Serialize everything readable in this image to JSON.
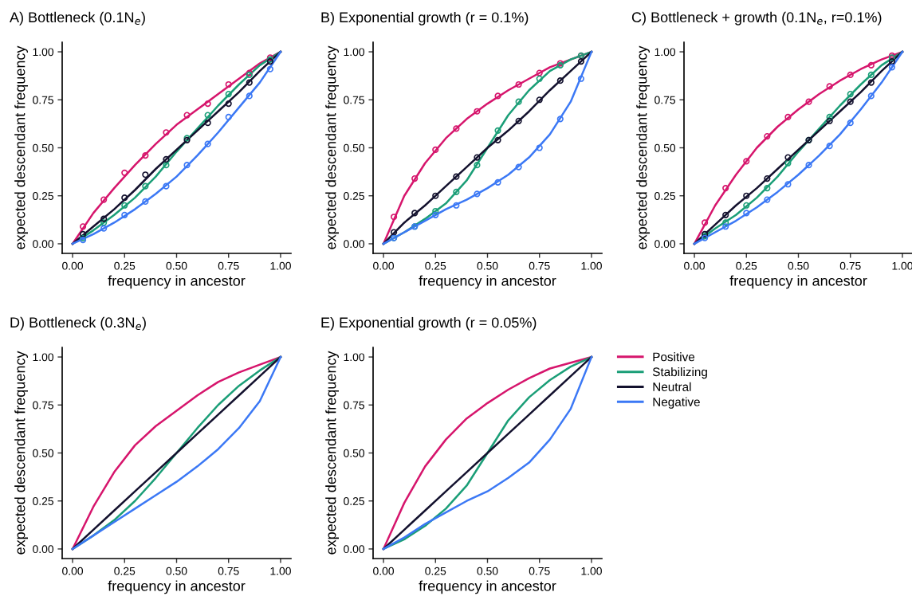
{
  "chart_data": [
    {
      "type": "line",
      "title": "A) Bottleneck (0.1N$_{e}$)",
      "xlabel": "frequency in ancestor",
      "ylabel": "expected descendant frequency",
      "x": [
        0,
        0.1,
        0.2,
        0.3,
        0.4,
        0.5,
        0.6,
        0.7,
        0.8,
        0.9,
        1
      ],
      "xlim": [
        -0.05,
        1.05
      ],
      "ylim": [
        -0.05,
        1.05
      ],
      "xticks": [
        {
          "value": 0,
          "label": "0.00"
        },
        {
          "value": 0.25,
          "label": "0.25"
        },
        {
          "value": 0.5,
          "label": "0.50"
        },
        {
          "value": 0.75,
          "label": "0.75"
        },
        {
          "value": 1,
          "label": "1.00"
        }
      ],
      "yticks": [
        {
          "value": 0,
          "label": "0.00"
        },
        {
          "value": 0.25,
          "label": "0.25"
        },
        {
          "value": 0.5,
          "label": "0.50"
        },
        {
          "value": 0.75,
          "label": "0.75"
        },
        {
          "value": 1,
          "label": "1.00"
        }
      ],
      "grid": false,
      "legend": false,
      "series": [
        {
          "color": "#d6156c",
          "values": [
            0,
            0.16,
            0.29,
            0.41,
            0.52,
            0.62,
            0.7,
            0.78,
            0.86,
            0.94,
            1
          ]
        },
        {
          "color": "#1a9e77",
          "values": [
            0,
            0.07,
            0.15,
            0.24,
            0.35,
            0.48,
            0.6,
            0.72,
            0.83,
            0.93,
            1
          ]
        },
        {
          "color": "#13112e",
          "values": [
            0,
            0.09,
            0.18,
            0.28,
            0.39,
            0.49,
            0.59,
            0.69,
            0.79,
            0.9,
            1
          ]
        },
        {
          "color": "#3b78f5",
          "values": [
            0,
            0.05,
            0.11,
            0.18,
            0.26,
            0.35,
            0.46,
            0.58,
            0.71,
            0.84,
            1
          ]
        },
        {
          "type": "scatter",
          "marker": "circle",
          "color": "#d6156c",
          "x": [
            0.05,
            0.15,
            0.25,
            0.35,
            0.45,
            0.55,
            0.65,
            0.75,
            0.85,
            0.95
          ],
          "values": [
            0.09,
            0.23,
            0.37,
            0.46,
            0.58,
            0.67,
            0.73,
            0.83,
            0.89,
            0.97
          ]
        },
        {
          "type": "scatter",
          "marker": "circle",
          "color": "#1a9e77",
          "x": [
            0.05,
            0.15,
            0.25,
            0.35,
            0.45,
            0.55,
            0.65,
            0.75,
            0.85,
            0.95
          ],
          "values": [
            0.03,
            0.11,
            0.2,
            0.3,
            0.41,
            0.55,
            0.67,
            0.78,
            0.88,
            0.96
          ]
        },
        {
          "type": "scatter",
          "marker": "circle",
          "color": "#13112e",
          "x": [
            0.05,
            0.15,
            0.25,
            0.35,
            0.45,
            0.55,
            0.65,
            0.75,
            0.85,
            0.95
          ],
          "values": [
            0.05,
            0.13,
            0.24,
            0.36,
            0.44,
            0.54,
            0.63,
            0.73,
            0.84,
            0.95
          ]
        },
        {
          "type": "scatter",
          "marker": "circle",
          "color": "#3b78f5",
          "x": [
            0.05,
            0.15,
            0.25,
            0.35,
            0.45,
            0.55,
            0.65,
            0.75,
            0.85,
            0.95
          ],
          "values": [
            0.02,
            0.08,
            0.15,
            0.22,
            0.3,
            0.41,
            0.52,
            0.66,
            0.77,
            0.91
          ]
        }
      ]
    },
    {
      "type": "line",
      "title": "B) Exponential growth (r = 0.1%)",
      "xlabel": "frequency in ancestor",
      "ylabel": "expected descendant frequency",
      "x": [
        0,
        0.1,
        0.2,
        0.3,
        0.4,
        0.5,
        0.6,
        0.7,
        0.8,
        0.9,
        1
      ],
      "xlim": [
        -0.05,
        1.05
      ],
      "ylim": [
        -0.05,
        1.05
      ],
      "xticks": [
        {
          "value": 0,
          "label": "0.00"
        },
        {
          "value": 0.25,
          "label": "0.25"
        },
        {
          "value": 0.5,
          "label": "0.50"
        },
        {
          "value": 0.75,
          "label": "0.75"
        },
        {
          "value": 1,
          "label": "1.00"
        }
      ],
      "yticks": [
        {
          "value": 0,
          "label": "0.00"
        },
        {
          "value": 0.25,
          "label": "0.25"
        },
        {
          "value": 0.5,
          "label": "0.50"
        },
        {
          "value": 0.75,
          "label": "0.75"
        },
        {
          "value": 1,
          "label": "1.00"
        }
      ],
      "grid": false,
      "legend": false,
      "series": [
        {
          "color": "#d6156c",
          "values": [
            0,
            0.25,
            0.42,
            0.55,
            0.65,
            0.73,
            0.8,
            0.86,
            0.92,
            0.96,
            1
          ]
        },
        {
          "color": "#1a9e77",
          "values": [
            0,
            0.06,
            0.13,
            0.21,
            0.33,
            0.5,
            0.67,
            0.8,
            0.9,
            0.96,
            1
          ]
        },
        {
          "color": "#13112e",
          "values": [
            0,
            0.11,
            0.2,
            0.3,
            0.4,
            0.5,
            0.59,
            0.69,
            0.8,
            0.9,
            1
          ]
        },
        {
          "color": "#3b78f5",
          "values": [
            0,
            0.06,
            0.12,
            0.18,
            0.23,
            0.29,
            0.36,
            0.45,
            0.57,
            0.74,
            1
          ]
        },
        {
          "type": "scatter",
          "marker": "circle",
          "color": "#d6156c",
          "x": [
            0.05,
            0.15,
            0.25,
            0.35,
            0.45,
            0.55,
            0.65,
            0.75,
            0.85,
            0.95
          ],
          "values": [
            0.14,
            0.34,
            0.49,
            0.6,
            0.69,
            0.77,
            0.83,
            0.89,
            0.94,
            0.98
          ]
        },
        {
          "type": "scatter",
          "marker": "circle",
          "color": "#1a9e77",
          "x": [
            0.05,
            0.15,
            0.25,
            0.35,
            0.45,
            0.55,
            0.65,
            0.75,
            0.85,
            0.95
          ],
          "values": [
            0.03,
            0.09,
            0.17,
            0.27,
            0.41,
            0.59,
            0.74,
            0.86,
            0.93,
            0.98
          ]
        },
        {
          "type": "scatter",
          "marker": "circle",
          "color": "#13112e",
          "x": [
            0.05,
            0.15,
            0.25,
            0.35,
            0.45,
            0.55,
            0.65,
            0.75,
            0.85,
            0.95
          ],
          "values": [
            0.06,
            0.16,
            0.25,
            0.35,
            0.45,
            0.54,
            0.64,
            0.75,
            0.85,
            0.95
          ]
        },
        {
          "type": "scatter",
          "marker": "circle",
          "color": "#3b78f5",
          "x": [
            0.05,
            0.15,
            0.25,
            0.35,
            0.45,
            0.55,
            0.65,
            0.75,
            0.85,
            0.95
          ],
          "values": [
            0.03,
            0.09,
            0.15,
            0.2,
            0.26,
            0.32,
            0.4,
            0.5,
            0.65,
            0.86
          ]
        }
      ]
    },
    {
      "type": "line",
      "title": "C) Bottleneck + growth (0.1N$_{e}$, r=0.1%)",
      "xlabel": "frequency in ancestor",
      "ylabel": "expected descendant frequency",
      "x": [
        0,
        0.1,
        0.2,
        0.3,
        0.4,
        0.5,
        0.6,
        0.7,
        0.8,
        0.9,
        1
      ],
      "xlim": [
        -0.05,
        1.05
      ],
      "ylim": [
        -0.05,
        1.05
      ],
      "xticks": [
        {
          "value": 0,
          "label": "0.00"
        },
        {
          "value": 0.25,
          "label": "0.25"
        },
        {
          "value": 0.5,
          "label": "0.50"
        },
        {
          "value": 0.75,
          "label": "0.75"
        },
        {
          "value": 1,
          "label": "1.00"
        }
      ],
      "yticks": [
        {
          "value": 0,
          "label": "0.00"
        },
        {
          "value": 0.25,
          "label": "0.25"
        },
        {
          "value": 0.5,
          "label": "0.50"
        },
        {
          "value": 0.75,
          "label": "0.75"
        },
        {
          "value": 1,
          "label": "1.00"
        }
      ],
      "grid": false,
      "legend": false,
      "series": [
        {
          "color": "#d6156c",
          "values": [
            0,
            0.2,
            0.36,
            0.5,
            0.61,
            0.7,
            0.78,
            0.85,
            0.91,
            0.96,
            1
          ]
        },
        {
          "color": "#1a9e77",
          "values": [
            0,
            0.08,
            0.15,
            0.24,
            0.35,
            0.48,
            0.6,
            0.72,
            0.83,
            0.93,
            1
          ]
        },
        {
          "color": "#13112e",
          "values": [
            0,
            0.1,
            0.2,
            0.29,
            0.39,
            0.49,
            0.59,
            0.69,
            0.79,
            0.9,
            1
          ]
        },
        {
          "color": "#3b78f5",
          "values": [
            0,
            0.06,
            0.12,
            0.19,
            0.27,
            0.36,
            0.46,
            0.57,
            0.7,
            0.84,
            1
          ]
        },
        {
          "type": "scatter",
          "marker": "circle",
          "color": "#d6156c",
          "x": [
            0.05,
            0.15,
            0.25,
            0.35,
            0.45,
            0.55,
            0.65,
            0.75,
            0.85,
            0.95
          ],
          "values": [
            0.11,
            0.29,
            0.43,
            0.56,
            0.66,
            0.74,
            0.82,
            0.88,
            0.93,
            0.98
          ]
        },
        {
          "type": "scatter",
          "marker": "circle",
          "color": "#1a9e77",
          "x": [
            0.05,
            0.15,
            0.25,
            0.35,
            0.45,
            0.55,
            0.65,
            0.75,
            0.85,
            0.95
          ],
          "values": [
            0.04,
            0.11,
            0.2,
            0.29,
            0.42,
            0.54,
            0.66,
            0.78,
            0.88,
            0.97
          ]
        },
        {
          "type": "scatter",
          "marker": "circle",
          "color": "#13112e",
          "x": [
            0.05,
            0.15,
            0.25,
            0.35,
            0.45,
            0.55,
            0.65,
            0.75,
            0.85,
            0.95
          ],
          "values": [
            0.05,
            0.15,
            0.25,
            0.34,
            0.45,
            0.54,
            0.64,
            0.74,
            0.84,
            0.95
          ]
        },
        {
          "type": "scatter",
          "marker": "circle",
          "color": "#3b78f5",
          "x": [
            0.05,
            0.15,
            0.25,
            0.35,
            0.45,
            0.55,
            0.65,
            0.75,
            0.85,
            0.95
          ],
          "values": [
            0.03,
            0.09,
            0.16,
            0.23,
            0.31,
            0.41,
            0.51,
            0.63,
            0.77,
            0.92
          ]
        }
      ]
    },
    {
      "type": "line",
      "title": "D) Bottleneck (0.3N$_{e}$)",
      "xlabel": "frequency in ancestor",
      "ylabel": "expected descendant frequency",
      "x": [
        0,
        0.1,
        0.2,
        0.3,
        0.4,
        0.5,
        0.6,
        0.7,
        0.8,
        0.9,
        1
      ],
      "xlim": [
        -0.05,
        1.05
      ],
      "ylim": [
        -0.05,
        1.05
      ],
      "xticks": [
        {
          "value": 0,
          "label": "0.00"
        },
        {
          "value": 0.25,
          "label": "0.25"
        },
        {
          "value": 0.5,
          "label": "0.50"
        },
        {
          "value": 0.75,
          "label": "0.75"
        },
        {
          "value": 1,
          "label": "1.00"
        }
      ],
      "yticks": [
        {
          "value": 0,
          "label": "0.00"
        },
        {
          "value": 0.25,
          "label": "0.25"
        },
        {
          "value": 0.5,
          "label": "0.50"
        },
        {
          "value": 0.75,
          "label": "0.75"
        },
        {
          "value": 1,
          "label": "1.00"
        }
      ],
      "grid": false,
      "legend": false,
      "series": [
        {
          "color": "#d6156c",
          "values": [
            0,
            0.22,
            0.4,
            0.54,
            0.64,
            0.72,
            0.8,
            0.87,
            0.92,
            0.96,
            1
          ]
        },
        {
          "color": "#1a9e77",
          "values": [
            0,
            0.07,
            0.15,
            0.25,
            0.37,
            0.5,
            0.63,
            0.75,
            0.85,
            0.93,
            1
          ]
        },
        {
          "color": "#13112e",
          "values": [
            0,
            0.1,
            0.2,
            0.3,
            0.4,
            0.5,
            0.6,
            0.7,
            0.8,
            0.9,
            1
          ]
        },
        {
          "color": "#3b78f5",
          "values": [
            0,
            0.07,
            0.14,
            0.21,
            0.28,
            0.35,
            0.43,
            0.52,
            0.63,
            0.77,
            1
          ]
        }
      ]
    },
    {
      "type": "line",
      "title": "E) Exponential growth (r = 0.05%)",
      "xlabel": "frequency in ancestor",
      "ylabel": "expected descendant frequency",
      "x": [
        0,
        0.1,
        0.2,
        0.3,
        0.4,
        0.5,
        0.6,
        0.7,
        0.8,
        0.9,
        1
      ],
      "xlim": [
        -0.05,
        1.05
      ],
      "ylim": [
        -0.05,
        1.05
      ],
      "xticks": [
        {
          "value": 0,
          "label": "0.00"
        },
        {
          "value": 0.25,
          "label": "0.25"
        },
        {
          "value": 0.5,
          "label": "0.50"
        },
        {
          "value": 0.75,
          "label": "0.75"
        },
        {
          "value": 1,
          "label": "1.00"
        }
      ],
      "yticks": [
        {
          "value": 0,
          "label": "0.00"
        },
        {
          "value": 0.25,
          "label": "0.25"
        },
        {
          "value": 0.5,
          "label": "0.50"
        },
        {
          "value": 0.75,
          "label": "0.75"
        },
        {
          "value": 1,
          "label": "1.00"
        }
      ],
      "grid": false,
      "legend": "right",
      "series": [
        {
          "name": "Positive",
          "color": "#d6156c",
          "values": [
            0,
            0.24,
            0.43,
            0.57,
            0.68,
            0.76,
            0.83,
            0.89,
            0.94,
            0.97,
            1
          ]
        },
        {
          "name": "Stabilizing",
          "color": "#1a9e77",
          "values": [
            0,
            0.05,
            0.12,
            0.21,
            0.33,
            0.5,
            0.67,
            0.79,
            0.88,
            0.95,
            1
          ]
        },
        {
          "name": "Neutral",
          "color": "#13112e",
          "values": [
            0,
            0.1,
            0.2,
            0.3,
            0.4,
            0.5,
            0.6,
            0.7,
            0.8,
            0.9,
            1
          ]
        },
        {
          "name": "Negative",
          "color": "#3b78f5",
          "values": [
            0,
            0.06,
            0.13,
            0.19,
            0.25,
            0.3,
            0.37,
            0.45,
            0.57,
            0.73,
            1
          ]
        }
      ]
    }
  ]
}
